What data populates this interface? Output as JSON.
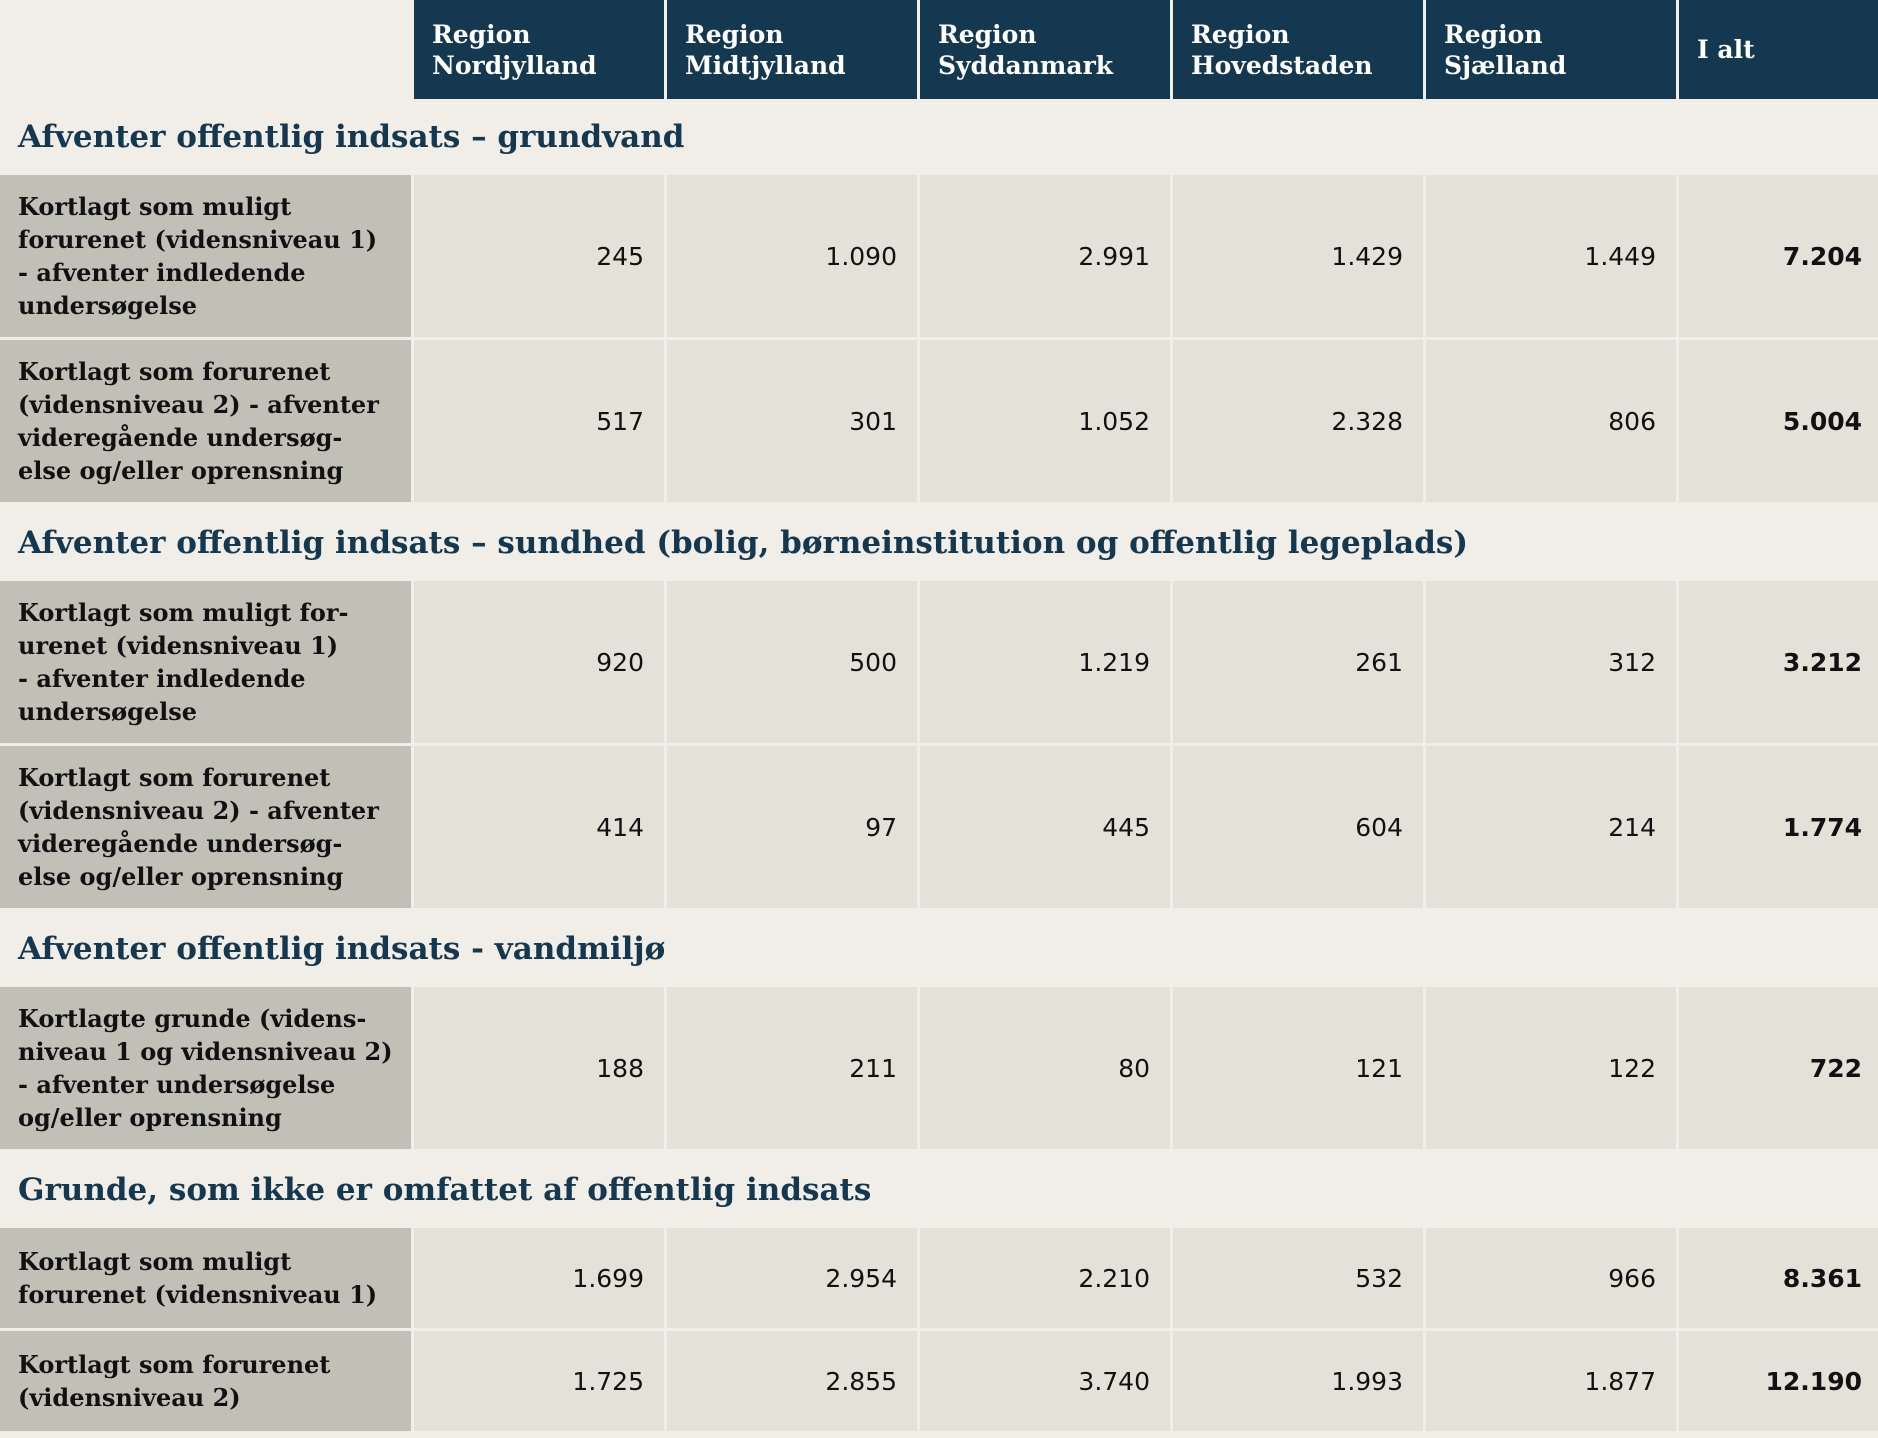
{
  "header": {
    "columns": [
      "Region\nNordjylland",
      "Region\nMidtjylland",
      "Region\nSyddanmark",
      "Region\nHovedstaden",
      "Region\nSjælland",
      "I alt"
    ]
  },
  "sections": [
    {
      "title": "Afventer offentlig indsats – grundvand",
      "rows": [
        {
          "label": "Kortlagt som muligt\nforurenet (vidensniveau 1)\n- afventer indledende\nundersøgelse",
          "values": [
            "245",
            "1.090",
            "2.991",
            "1.429",
            "1.449",
            "7.204"
          ]
        },
        {
          "label": "Kortlagt som forurenet\n(vidensniveau 2) - afventer\nvideregående undersøg-\nelse og/eller oprensning",
          "values": [
            "517",
            "301",
            "1.052",
            "2.328",
            "806",
            "5.004"
          ]
        }
      ]
    },
    {
      "title": "Afventer offentlig indsats – sundhed (bolig, børneinstitution og offentlig legeplads)",
      "rows": [
        {
          "label": "Kortlagt som muligt for-\nurenet (vidensniveau 1)\n- afventer indledende\nundersøgelse",
          "values": [
            "920",
            "500",
            "1.219",
            "261",
            "312",
            "3.212"
          ]
        },
        {
          "label": "Kortlagt som forurenet\n(vidensniveau 2) - afventer\nvideregående undersøg-\nelse og/eller oprensning",
          "values": [
            "414",
            "97",
            "445",
            "604",
            "214",
            "1.774"
          ]
        }
      ]
    },
    {
      "title": "Afventer offentlig indsats - vandmiljø",
      "rows": [
        {
          "label": "Kortlagte grunde (videns-\nniveau 1 og vidensniveau 2)\n- afventer undersøgelse\nog/eller oprensning",
          "values": [
            "188",
            "211",
            "80",
            "121",
            "122",
            "722"
          ]
        }
      ]
    },
    {
      "title": "Grunde, som ikke er omfattet af offentlig indsats",
      "rows": [
        {
          "label": "Kortlagt som muligt\nforurenet (vidensniveau 1)",
          "values": [
            "1.699",
            "2.954",
            "2.210",
            "532",
            "966",
            "8.361"
          ]
        },
        {
          "label": "Kortlagt som forurenet\n(vidensniveau 2)",
          "values": [
            "1.725",
            "2.855",
            "3.740",
            "1.993",
            "1.877",
            "12.190"
          ]
        }
      ]
    }
  ]
}
